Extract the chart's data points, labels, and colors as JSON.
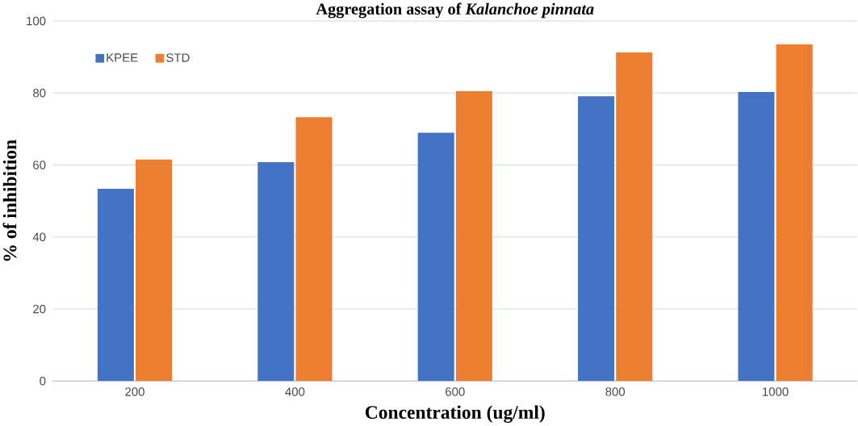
{
  "chart_data": {
    "type": "bar",
    "title": "Aggregation assay of *Kalanchoe pinnata*",
    "xlabel": "Concentration  (ug/ml)",
    "ylabel": "% of inhibition",
    "categories": [
      "200",
      "400",
      "600",
      "800",
      "1000"
    ],
    "series": [
      {
        "name": "KPEE",
        "color": "#4472c4",
        "values": [
          53.4,
          60.8,
          69.0,
          79.1,
          80.3
        ]
      },
      {
        "name": "STD",
        "color": "#ed7d31",
        "values": [
          61.5,
          73.3,
          80.5,
          91.3,
          93.5
        ]
      }
    ],
    "ylim": [
      0,
      100
    ],
    "yticks": [
      0,
      20,
      40,
      60,
      80,
      100
    ],
    "grid": "y",
    "legend": "top left"
  }
}
